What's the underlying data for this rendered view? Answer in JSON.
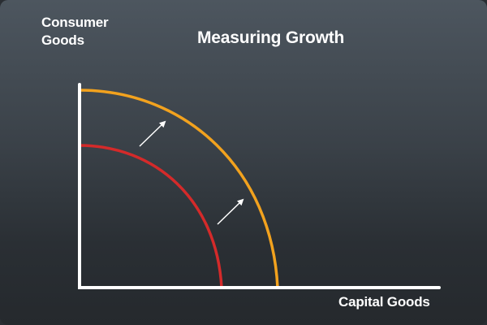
{
  "diagram": {
    "title": "Measuring Growth",
    "y_axis_label_line1": "Consumer",
    "y_axis_label_line2": "Goods",
    "x_axis_label": "Capital Goods",
    "curves": [
      {
        "name": "inner",
        "color": "#d42a2a"
      },
      {
        "name": "outer",
        "color": "#f2a21e"
      }
    ],
    "axis_color": "#ffffff",
    "arrow_color": "#ffffff"
  }
}
